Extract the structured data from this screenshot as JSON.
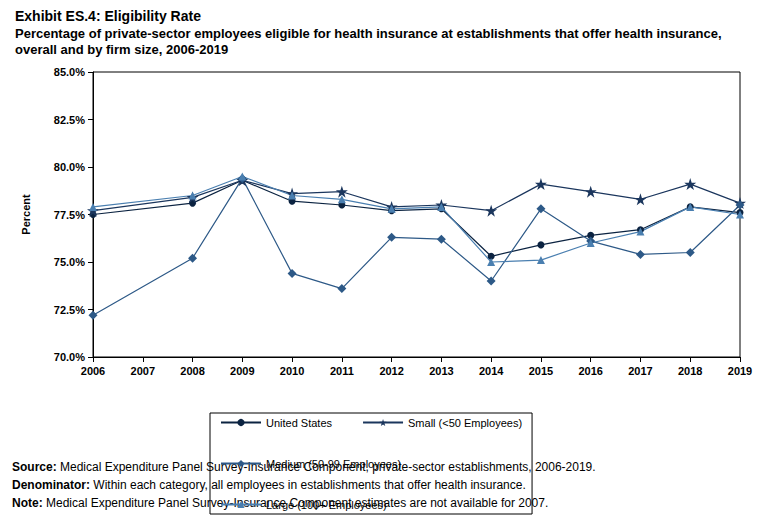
{
  "chart_data": {
    "type": "line",
    "title": "Exhibit ES.4: Eligibility Rate",
    "subtitle": "Percentage of private-sector employees eligible for health insurance at establishments that offer health insurance, overall and by firm size, 2006-2019",
    "y_label": "Percent",
    "x": [
      2006,
      2008,
      2009,
      2010,
      2011,
      2012,
      2013,
      2014,
      2015,
      2016,
      2017,
      2018,
      2019
    ],
    "xlim": [
      2006,
      2019
    ],
    "xticks": [
      2006,
      2007,
      2008,
      2009,
      2010,
      2011,
      2012,
      2013,
      2014,
      2015,
      2016,
      2017,
      2018,
      2019
    ],
    "ylim": [
      70,
      85
    ],
    "yticks": [
      {
        "value": 70,
        "label": "70.0%"
      },
      {
        "value": 72.5,
        "label": "72.5%"
      },
      {
        "value": 75,
        "label": "75.0%"
      },
      {
        "value": 77.5,
        "label": "77.5%"
      },
      {
        "value": 80,
        "label": "80.0%"
      },
      {
        "value": 82.5,
        "label": "82.5%"
      },
      {
        "value": 85,
        "label": "85.0%"
      }
    ],
    "grid": false,
    "legend": "bottom",
    "series": [
      {
        "name": "United States",
        "color": "#0b2341",
        "marker": "circle",
        "values": [
          77.5,
          78.1,
          79.3,
          78.2,
          78.0,
          77.7,
          77.8,
          75.3,
          75.9,
          76.4,
          76.7,
          77.9,
          77.6
        ]
      },
      {
        "name": "Small (<50 Employees)",
        "color": "#1b365d",
        "marker": "star",
        "values": [
          77.7,
          78.4,
          79.3,
          78.6,
          78.7,
          77.9,
          78.0,
          77.7,
          79.1,
          78.7,
          78.3,
          79.1,
          78.1
        ]
      },
      {
        "name": "Medium (50-99 Employees)",
        "color": "#2d5987",
        "marker": "diamond",
        "values": [
          72.2,
          75.2,
          79.4,
          74.4,
          73.6,
          76.3,
          76.2,
          74.0,
          77.8,
          76.1,
          75.4,
          75.5,
          78.0
        ]
      },
      {
        "name": "Large (100+ Employees)",
        "color": "#4a7fb0",
        "marker": "triangle",
        "values": [
          77.9,
          78.5,
          79.5,
          78.5,
          78.3,
          77.8,
          77.9,
          75.0,
          75.1,
          76.0,
          76.6,
          77.9,
          77.5
        ]
      }
    ],
    "notes": [
      {
        "label": "Source:",
        "text": "Medical Expenditure Panel Survey-Insurance Component, private-sector establishments, 2006-2019."
      },
      {
        "label": "Denominator:",
        "text": "Within each category, all employees in establishments that offer health insurance."
      },
      {
        "label": "Note:",
        "text": "Medical Expenditure Panel Survey-Insurance Component estimates are not available for 2007."
      }
    ]
  }
}
